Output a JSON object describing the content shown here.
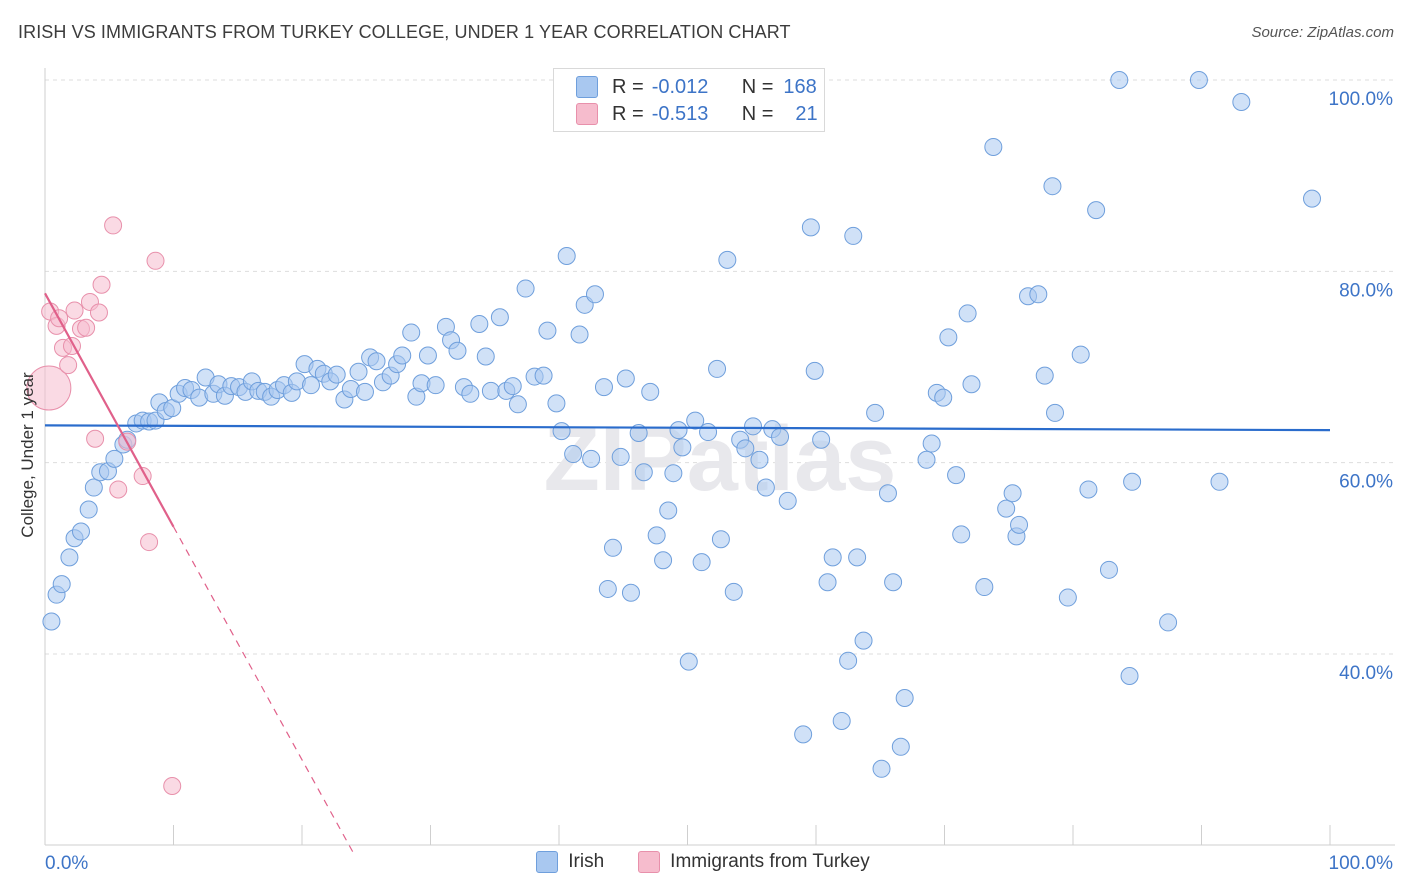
{
  "title": "IRISH VS IMMIGRANTS FROM TURKEY COLLEGE, UNDER 1 YEAR CORRELATION CHART",
  "source": "Source: ZipAtlas.com",
  "watermark": "ZIPatlas",
  "legend": {
    "rows": [
      {
        "r_label": "R =",
        "r_value": "-0.012",
        "n_label": "N =",
        "n_value": "168"
      },
      {
        "r_label": "R =",
        "r_value": "-0.513",
        "n_label": "N =",
        "n_value": "21"
      }
    ]
  },
  "colors": {
    "irish_fill": "#a9c8f0",
    "irish_stroke": "#6f9fdc",
    "irish_line": "#2a6ccc",
    "turkey_fill": "#f6bccd",
    "turkey_stroke": "#e890ab",
    "turkey_line": "#e0608a",
    "axis_label": "#3d74c7",
    "grid": "#dddddd"
  },
  "chart_data": {
    "type": "scatter",
    "title": "IRISH VS IMMIGRANTS FROM TURKEY COLLEGE, UNDER 1 YEAR CORRELATION CHART",
    "xlabel": "",
    "ylabel": "College, Under 1 year",
    "xlim": [
      0,
      100
    ],
    "ylim": [
      20,
      101
    ],
    "x_tick_labels": [
      "0.0%",
      "100.0%"
    ],
    "y_tick_labels": [
      "40.0%",
      "60.0%",
      "80.0%",
      "100.0%"
    ],
    "y_ticks": [
      40,
      60,
      80,
      100
    ],
    "grid": true,
    "legend_placement": "top-center",
    "series": [
      {
        "name": "Irish",
        "r": -0.012,
        "n": 168,
        "trend": {
          "x0": 0,
          "y0": 63.9,
          "x1": 100,
          "y1": 63.4
        },
        "points": [
          [
            0.5,
            43.4
          ],
          [
            0.9,
            46.2
          ],
          [
            1.3,
            47.3
          ],
          [
            1.9,
            50.1
          ],
          [
            2.3,
            52.1
          ],
          [
            2.8,
            52.8
          ],
          [
            3.4,
            55.1
          ],
          [
            3.8,
            57.4
          ],
          [
            4.3,
            59.0
          ],
          [
            4.9,
            59.1
          ],
          [
            5.4,
            60.4
          ],
          [
            6.1,
            61.9
          ],
          [
            6.4,
            62.4
          ],
          [
            7.1,
            64.1
          ],
          [
            7.6,
            64.4
          ],
          [
            8.1,
            64.3
          ],
          [
            8.6,
            64.4
          ],
          [
            8.9,
            66.3
          ],
          [
            9.4,
            65.4
          ],
          [
            9.9,
            65.7
          ],
          [
            10.4,
            67.2
          ],
          [
            10.9,
            67.8
          ],
          [
            11.4,
            67.6
          ],
          [
            12.0,
            66.8
          ],
          [
            12.5,
            68.9
          ],
          [
            13.1,
            67.2
          ],
          [
            13.5,
            68.2
          ],
          [
            14.0,
            67.0
          ],
          [
            14.5,
            68.0
          ],
          [
            15.1,
            67.9
          ],
          [
            15.6,
            67.4
          ],
          [
            16.1,
            68.5
          ],
          [
            16.6,
            67.5
          ],
          [
            17.1,
            67.4
          ],
          [
            17.6,
            66.9
          ],
          [
            18.1,
            67.6
          ],
          [
            18.6,
            68.1
          ],
          [
            19.2,
            67.3
          ],
          [
            19.6,
            68.5
          ],
          [
            20.2,
            70.3
          ],
          [
            20.7,
            68.1
          ],
          [
            21.2,
            69.8
          ],
          [
            21.7,
            69.3
          ],
          [
            22.2,
            68.5
          ],
          [
            22.7,
            69.2
          ],
          [
            23.3,
            66.6
          ],
          [
            23.8,
            67.7
          ],
          [
            24.4,
            69.5
          ],
          [
            24.9,
            67.4
          ],
          [
            25.3,
            71.0
          ],
          [
            25.8,
            70.6
          ],
          [
            26.3,
            68.4
          ],
          [
            26.9,
            69.1
          ],
          [
            27.4,
            70.3
          ],
          [
            27.8,
            71.2
          ],
          [
            28.5,
            73.6
          ],
          [
            28.9,
            66.9
          ],
          [
            29.3,
            68.3
          ],
          [
            29.8,
            71.2
          ],
          [
            30.4,
            68.1
          ],
          [
            31.2,
            74.2
          ],
          [
            31.6,
            72.8
          ],
          [
            32.1,
            71.7
          ],
          [
            32.6,
            67.9
          ],
          [
            33.1,
            67.2
          ],
          [
            33.8,
            74.5
          ],
          [
            34.3,
            71.1
          ],
          [
            34.7,
            67.5
          ],
          [
            35.4,
            75.2
          ],
          [
            35.9,
            67.5
          ],
          [
            36.4,
            68.0
          ],
          [
            36.8,
            66.1
          ],
          [
            37.4,
            78.2
          ],
          [
            38.1,
            69.0
          ],
          [
            38.8,
            69.1
          ],
          [
            39.1,
            73.8
          ],
          [
            39.8,
            66.2
          ],
          [
            40.2,
            63.3
          ],
          [
            40.6,
            81.6
          ],
          [
            41.1,
            60.9
          ],
          [
            41.6,
            73.4
          ],
          [
            42.0,
            76.5
          ],
          [
            42.5,
            60.4
          ],
          [
            42.8,
            77.6
          ],
          [
            43.5,
            67.9
          ],
          [
            43.8,
            46.8
          ],
          [
            44.2,
            51.1
          ],
          [
            44.8,
            60.6
          ],
          [
            45.2,
            68.8
          ],
          [
            45.6,
            46.4
          ],
          [
            46.2,
            63.1
          ],
          [
            46.6,
            59.0
          ],
          [
            47.1,
            67.4
          ],
          [
            47.6,
            52.4
          ],
          [
            48.1,
            49.8
          ],
          [
            48.5,
            55.0
          ],
          [
            48.9,
            58.9
          ],
          [
            49.3,
            63.4
          ],
          [
            49.6,
            61.6
          ],
          [
            50.1,
            39.2
          ],
          [
            50.6,
            64.4
          ],
          [
            51.1,
            49.6
          ],
          [
            51.6,
            63.2
          ],
          [
            52.3,
            69.8
          ],
          [
            52.6,
            52.0
          ],
          [
            53.1,
            81.2
          ],
          [
            53.6,
            46.5
          ],
          [
            54.1,
            62.4
          ],
          [
            54.5,
            61.5
          ],
          [
            55.1,
            63.8
          ],
          [
            55.6,
            60.3
          ],
          [
            56.1,
            57.4
          ],
          [
            56.6,
            63.5
          ],
          [
            57.2,
            62.7
          ],
          [
            57.8,
            56.0
          ],
          [
            59.0,
            31.6
          ],
          [
            59.6,
            84.6
          ],
          [
            59.9,
            69.6
          ],
          [
            60.4,
            62.4
          ],
          [
            60.9,
            47.5
          ],
          [
            61.3,
            50.1
          ],
          [
            62.0,
            33.0
          ],
          [
            62.5,
            39.3
          ],
          [
            62.9,
            83.7
          ],
          [
            63.2,
            50.1
          ],
          [
            63.7,
            41.4
          ],
          [
            64.6,
            65.2
          ],
          [
            65.1,
            28.0
          ],
          [
            65.6,
            56.8
          ],
          [
            66.0,
            47.5
          ],
          [
            66.6,
            30.3
          ],
          [
            66.9,
            35.4
          ],
          [
            68.6,
            60.3
          ],
          [
            69.0,
            62.0
          ],
          [
            69.4,
            67.3
          ],
          [
            69.9,
            66.8
          ],
          [
            70.3,
            73.1
          ],
          [
            70.9,
            58.7
          ],
          [
            71.3,
            52.5
          ],
          [
            71.8,
            75.6
          ],
          [
            72.1,
            68.2
          ],
          [
            73.1,
            47.0
          ],
          [
            73.8,
            93.0
          ],
          [
            74.8,
            55.2
          ],
          [
            75.3,
            56.8
          ],
          [
            75.6,
            52.3
          ],
          [
            75.8,
            53.5
          ],
          [
            76.5,
            77.4
          ],
          [
            77.3,
            77.6
          ],
          [
            77.8,
            69.1
          ],
          [
            78.4,
            88.9
          ],
          [
            78.6,
            65.2
          ],
          [
            79.6,
            45.9
          ],
          [
            80.6,
            71.3
          ],
          [
            81.2,
            57.2
          ],
          [
            81.8,
            86.4
          ],
          [
            82.8,
            48.8
          ],
          [
            83.6,
            100.0
          ],
          [
            84.4,
            37.7
          ],
          [
            84.6,
            58.0
          ],
          [
            87.4,
            43.3
          ],
          [
            89.8,
            100.0
          ],
          [
            91.4,
            58.0
          ],
          [
            93.1,
            97.7
          ],
          [
            98.6,
            87.6
          ]
        ]
      },
      {
        "name": "Immigrants from Turkey",
        "r": -0.513,
        "n": 21,
        "trend": {
          "x0": 0,
          "y0": 77.7,
          "x1": 10.0,
          "y1": 53.3,
          "dash_to_x": 24.0,
          "dash_to_y": 19.2
        },
        "points": [
          [
            0.3,
            67.8
          ],
          [
            0.4,
            75.8
          ],
          [
            0.9,
            74.3
          ],
          [
            1.1,
            75.1
          ],
          [
            1.4,
            72.0
          ],
          [
            1.8,
            70.2
          ],
          [
            2.1,
            72.2
          ],
          [
            2.3,
            75.9
          ],
          [
            2.8,
            74.0
          ],
          [
            3.2,
            74.1
          ],
          [
            3.5,
            76.8
          ],
          [
            3.9,
            62.5
          ],
          [
            4.2,
            75.7
          ],
          [
            4.4,
            78.6
          ],
          [
            5.3,
            84.8
          ],
          [
            5.7,
            57.2
          ],
          [
            6.4,
            62.2
          ],
          [
            7.6,
            58.6
          ],
          [
            8.1,
            51.7
          ],
          [
            8.6,
            81.1
          ],
          [
            9.9,
            26.2
          ]
        ]
      }
    ]
  },
  "bottom_legend": {
    "irish": "Irish",
    "turkey": "Immigrants from Turkey"
  }
}
